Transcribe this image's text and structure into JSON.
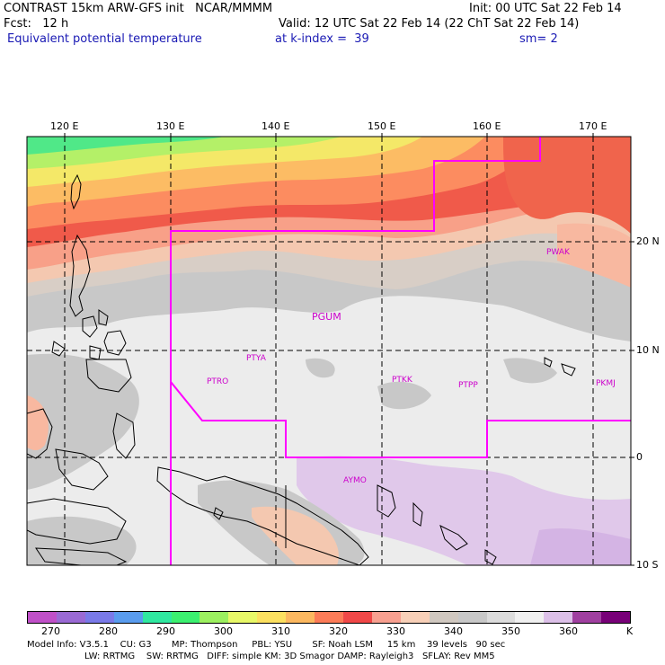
{
  "header": {
    "title_left": "CONTRAST 15km ARW-GFS init   NCAR/MMMM",
    "init": "Init: 00 UTC Sat 22 Feb 14",
    "fcst": "Fcst:   12 h",
    "valid": "Valid: 12 UTC Sat 22 Feb 14 (22 ChT Sat 22 Feb 14)",
    "field": "Equivalent potential temperature",
    "level": "at k-index =  39",
    "smooth": "sm= 2"
  },
  "axes": {
    "lon_labels": [
      "120 E",
      "130 E",
      "140 E",
      "150 E",
      "160 E",
      "170 E"
    ],
    "lat_labels": [
      "20 N",
      "10 N",
      "0",
      "10 S"
    ]
  },
  "stations": [
    "PWAK",
    "PGUM",
    "PTYA",
    "PTRO",
    "PTKK",
    "PTPP",
    "PKMJ",
    "AYMO"
  ],
  "colorbar": {
    "labels": [
      "270",
      "280",
      "290",
      "300",
      "310",
      "320",
      "330",
      "340",
      "350",
      "360"
    ],
    "unit": "K",
    "colors": [
      "#c050c8",
      "#9a6ad4",
      "#7a7ae8",
      "#5a9cee",
      "#30e8a0",
      "#3cf070",
      "#9cf060",
      "#e8f868",
      "#fce060",
      "#fcb860",
      "#fc7c58",
      "#f04848",
      "#f8a090",
      "#f8d0b8",
      "#d0c8c0",
      "#c8c8c8",
      "#dcdcdc",
      "#f0f0f0",
      "#dcc0e8",
      "#a040a0",
      "#780078"
    ]
  },
  "model_info": {
    "line1": "Model Info: V3.5.1    CU: G3       MP: Thompson     PBL: YSU       SF: Noah LSM     15 km    39 levels   90 sec",
    "line2": "LW: RRTMG    SW: RRTMG   DIFF: simple KM: 3D Smagor DAMP: Rayleigh3   SFLAY: Rev MM5"
  }
}
